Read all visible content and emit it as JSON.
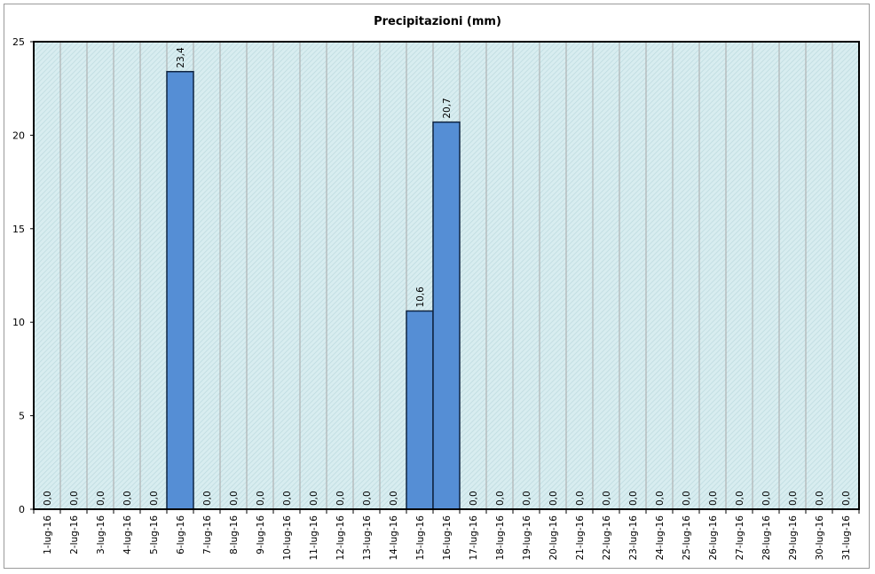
{
  "chart_data": {
    "type": "bar",
    "title": "Precipitazioni (mm)",
    "xlabel": "",
    "ylabel": "",
    "ylim": [
      0,
      25
    ],
    "yticks": [
      "0",
      "5",
      "10",
      "15",
      "20",
      "25"
    ],
    "grid": "vertical",
    "legend": "none",
    "categories": [
      "1-lug-16",
      "2-lug-16",
      "3-lug-16",
      "4-lug-16",
      "5-lug-16",
      "6-lug-16",
      "7-lug-16",
      "8-lug-16",
      "9-lug-16",
      "10-lug-16",
      "11-lug-16",
      "12-lug-16",
      "13-lug-16",
      "14-lug-16",
      "15-lug-16",
      "16-lug-16",
      "17-lug-16",
      "18-lug-16",
      "19-lug-16",
      "20-lug-16",
      "21-lug-16",
      "22-lug-16",
      "23-lug-16",
      "24-lug-16",
      "25-lug-16",
      "26-lug-16",
      "27-lug-16",
      "28-lug-16",
      "29-lug-16",
      "30-lug-16",
      "31-lug-16"
    ],
    "values": [
      0,
      0,
      0,
      0,
      0,
      23.4,
      0,
      0,
      0,
      0,
      0,
      0,
      0,
      0,
      10.6,
      20.7,
      0,
      0,
      0,
      0,
      0,
      0,
      0,
      0,
      0,
      0,
      0,
      0,
      0,
      0,
      0
    ],
    "data_labels": [
      "0,0",
      "0,0",
      "0,0",
      "0,0",
      "0,0",
      "23,4",
      "0,0",
      "0,0",
      "0,0",
      "0,0",
      "0,0",
      "0,0",
      "0,0",
      "0,0",
      "10,6",
      "20,7",
      "0,0",
      "0,0",
      "0,0",
      "0,0",
      "0,0",
      "0,0",
      "0,0",
      "0,0",
      "0,0",
      "0,0",
      "0,0",
      "0,0",
      "0,0",
      "0,0",
      "0,0"
    ],
    "colors": {
      "bar_fill": "#558ed5",
      "bar_stroke": "#0f2440",
      "plot_background": "#d8edf0",
      "hatch": "#bcd9de",
      "grid": "#a8a8a8",
      "axis": "#000000"
    }
  }
}
